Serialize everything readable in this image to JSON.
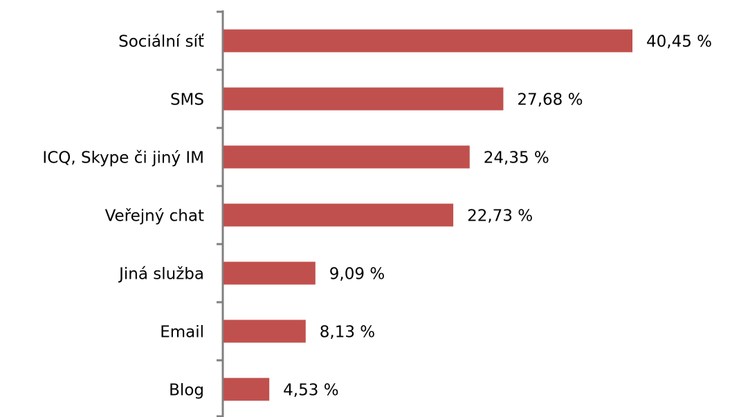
{
  "chart_data": {
    "type": "hbar",
    "categories": [
      "Sociální síť",
      "SMS",
      "ICQ, Skype či jiný IM",
      "Veřejný chat",
      "Jiná služba",
      "Email",
      "Blog"
    ],
    "values": [
      40.45,
      27.68,
      24.35,
      22.73,
      9.09,
      8.13,
      4.53
    ],
    "value_labels": [
      "40,45 %",
      "27,68 %",
      "24,35 %",
      "22,73 %",
      "9,09 %",
      "8,13 %",
      "4,53 %"
    ],
    "color": "#c0504d"
  }
}
